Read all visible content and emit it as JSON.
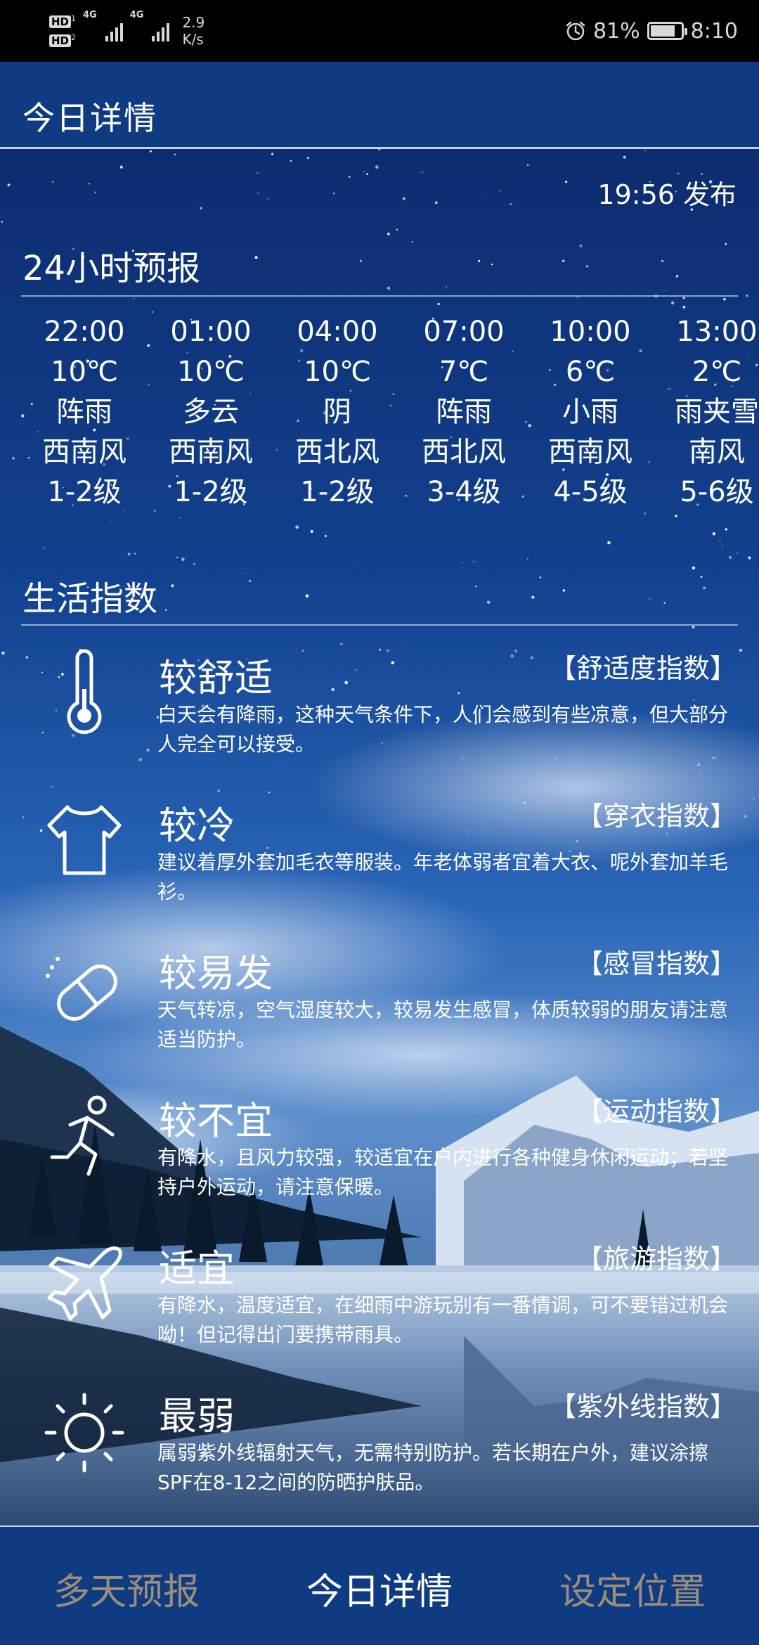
{
  "status_bar": {
    "sim1_badge": "HD",
    "sim1_index": "1",
    "sim2_badge": "HD",
    "sim2_index": "2",
    "network1": "4G",
    "network2": "4G",
    "speed_value": "2.9",
    "speed_unit": "K/s",
    "alarm_icon": "alarm-clock-icon",
    "battery_percent": "81%",
    "battery_level": 0.81,
    "time": "8:10"
  },
  "header": {
    "title": "今日详情"
  },
  "publish_time": "19:56 发布",
  "forecast": {
    "title": "24小时预报",
    "hours": [
      {
        "time": "22:00",
        "temp": "10℃",
        "weather": "阵雨",
        "wind_dir": "西南风",
        "wind_level": "1-2级"
      },
      {
        "time": "01:00",
        "temp": "10℃",
        "weather": "多云",
        "wind_dir": "西南风",
        "wind_level": "1-2级"
      },
      {
        "time": "04:00",
        "temp": "10℃",
        "weather": "阴",
        "wind_dir": "西北风",
        "wind_level": "1-2级"
      },
      {
        "time": "07:00",
        "temp": "7℃",
        "weather": "阵雨",
        "wind_dir": "西北风",
        "wind_level": "3-4级"
      },
      {
        "time": "10:00",
        "temp": "6℃",
        "weather": "小雨",
        "wind_dir": "西南风",
        "wind_level": "4-5级"
      },
      {
        "time": "13:00",
        "temp": "2℃",
        "weather": "雨夹雪",
        "wind_dir": "南风",
        "wind_level": "5-6级"
      }
    ]
  },
  "life": {
    "title": "生活指数",
    "items": [
      {
        "icon": "thermometer-icon",
        "level": "较舒适",
        "name": "【舒适度指数】",
        "desc": "白天会有降雨，这种天气条件下，人们会感到有些凉意，但大部分人完全可以接受。"
      },
      {
        "icon": "shirt-icon",
        "level": "较冷",
        "name": "【穿衣指数】",
        "desc": "建议着厚外套加毛衣等服装。年老体弱者宜着大衣、呢外套加羊毛衫。"
      },
      {
        "icon": "pill-icon",
        "level": "较易发",
        "name": "【感冒指数】",
        "desc": "天气转凉，空气湿度较大，较易发生感冒，体质较弱的朋友请注意适当防护。"
      },
      {
        "icon": "runner-icon",
        "level": "较不宜",
        "name": "【运动指数】",
        "desc": "有降水，且风力较强，较适宜在户内进行各种健身休闲运动；若坚持户外运动，请注意保暖。"
      },
      {
        "icon": "airplane-icon",
        "level": "适宜",
        "name": "【旅游指数】",
        "desc": "有降水，温度适宜，在细雨中游玩别有一番情调，可不要错过机会呦！但记得出门要携带雨具。"
      },
      {
        "icon": "sun-icon",
        "level": "最弱",
        "name": "【紫外线指数】",
        "desc": "属弱紫外线辐射天气，无需特别防护。若长期在户外，建议涂擦SPF在8-12之间的防晒护肤品。"
      }
    ]
  },
  "bottom_nav": {
    "tabs": [
      {
        "label": "多天预报",
        "active": false
      },
      {
        "label": "今日详情",
        "active": true
      },
      {
        "label": "设定位置",
        "active": false
      }
    ]
  },
  "colors": {
    "sky_top": "#0a2563",
    "sky_mid": "#1a4fa0",
    "bar_blue": "#0f3b82",
    "inactive_tab": "#9c8e78"
  }
}
